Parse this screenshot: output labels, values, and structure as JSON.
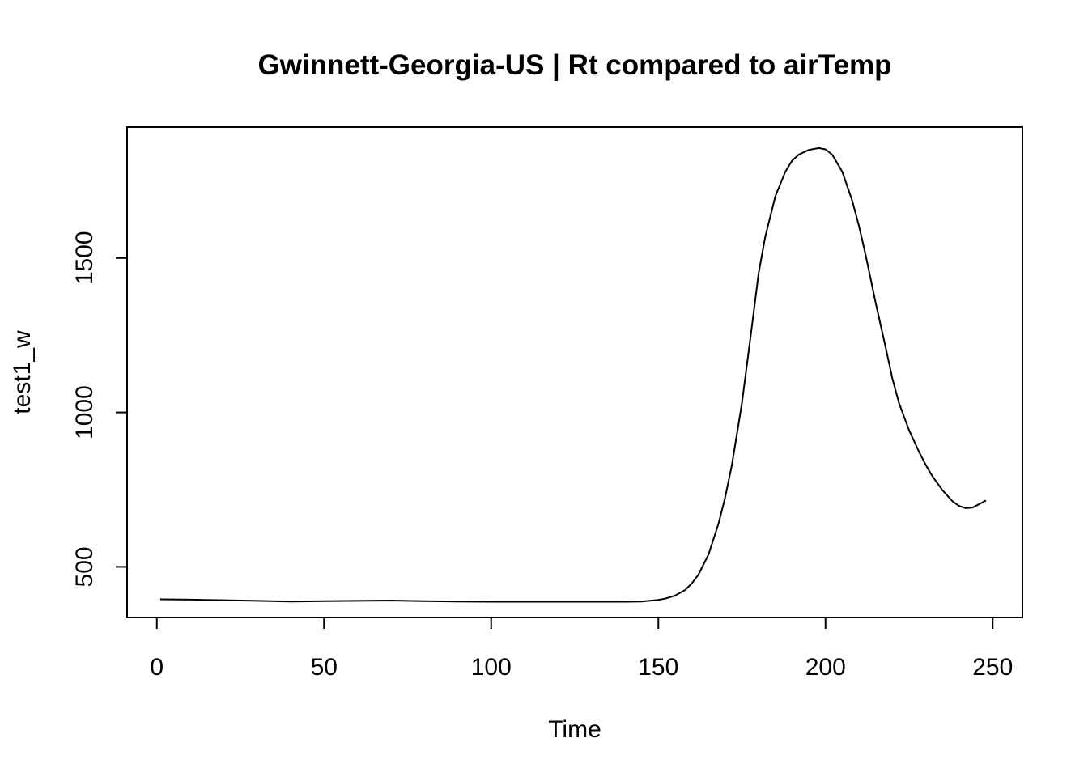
{
  "chart_data": {
    "type": "line",
    "title": "Gwinnett-Georgia-US | Rt compared to airTemp",
    "xlabel": "Time",
    "ylabel": "test1_w",
    "xlim": [
      -8.9,
      258.9
    ],
    "ylim": [
      336,
      1924
    ],
    "x_ticks": [
      0,
      50,
      100,
      150,
      200,
      250
    ],
    "y_ticks": [
      500,
      1000,
      1500
    ],
    "grid": false,
    "legend": "none",
    "line_color": "#000000",
    "series": [
      {
        "x": [
          1,
          10,
          20,
          30,
          40,
          50,
          60,
          70,
          80,
          90,
          100,
          110,
          120,
          130,
          140,
          145,
          150,
          152,
          155,
          158,
          160,
          162,
          165,
          168,
          170,
          172,
          175,
          178,
          180,
          182,
          185,
          188,
          190,
          192,
          195,
          198,
          200,
          202,
          205,
          208,
          210,
          212,
          215,
          218,
          220,
          222,
          225,
          228,
          230,
          232,
          235,
          238,
          240,
          242,
          244,
          246,
          248
        ],
        "y": [
          395,
          394,
          392,
          390,
          388,
          389,
          390,
          391,
          389,
          388,
          387,
          387,
          387,
          387,
          387,
          388,
          393,
          397,
          407,
          425,
          446,
          475,
          540,
          640,
          725,
          830,
          1030,
          1280,
          1450,
          1570,
          1700,
          1780,
          1815,
          1835,
          1850,
          1856,
          1852,
          1835,
          1780,
          1685,
          1605,
          1510,
          1355,
          1210,
          1110,
          1030,
          942,
          872,
          830,
          793,
          748,
          712,
          697,
          690,
          692,
          703,
          715
        ]
      }
    ]
  }
}
